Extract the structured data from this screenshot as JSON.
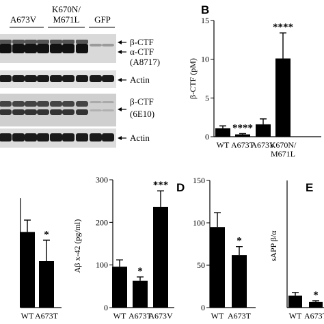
{
  "figure": {
    "panels": {
      "B": "B",
      "D": "D",
      "E": "E"
    },
    "western_blot": {
      "lane_groups": [
        "A673V",
        "K670N/\nM671L",
        "GFP"
      ],
      "lane_group_lines": [
        [
          "A673V"
        ],
        [
          "K670N/",
          "M671L"
        ],
        [
          "GFP"
        ]
      ],
      "blot1_labels": [
        "β-CTF",
        "α-CTF",
        "(A8717)"
      ],
      "blot2_label": "Actin",
      "blot3_labels": [
        "β-CTF",
        "(6E10)"
      ],
      "blot4_label": "Actin"
    }
  },
  "chart_data": [
    {
      "id": "panel-B",
      "type": "bar",
      "ylabel": "β-CTF (pM)",
      "ylim": [
        0,
        15
      ],
      "yticks": [
        0,
        5,
        10,
        15
      ],
      "categories": [
        "WT",
        "A673T",
        "A673V",
        "K670N/M671L"
      ],
      "category_label_lines": [
        [
          "WT"
        ],
        [
          "A673T"
        ],
        [
          "A673V"
        ],
        [
          "K670N/",
          "M671L"
        ]
      ],
      "values": [
        1.1,
        0.3,
        1.6,
        10.1
      ],
      "errors": [
        0.3,
        0.1,
        0.7,
        3.3
      ],
      "significance": [
        "",
        "****",
        "",
        "****"
      ]
    },
    {
      "id": "panel-C-right",
      "type": "bar",
      "ylabel": "",
      "ylim": [
        0,
        1.2
      ],
      "yticks": [],
      "categories": [
        "WT",
        "A673T"
      ],
      "category_label_lines": [
        [
          "WT"
        ],
        [
          "A673T"
        ]
      ],
      "values": [
        0.83,
        0.51
      ],
      "errors": [
        0.13,
        0.23
      ],
      "significance": [
        "",
        "*"
      ]
    },
    {
      "id": "panel-D-left",
      "type": "bar",
      "ylabel": "Aβ x-42 (pg/ml)",
      "ylim": [
        0,
        300
      ],
      "yticks": [
        0,
        100,
        200,
        300
      ],
      "categories": [
        "WT",
        "A673T",
        "A673V"
      ],
      "category_label_lines": [
        [
          "WT"
        ],
        [
          "A673T"
        ],
        [
          "A673V"
        ]
      ],
      "values": [
        96,
        63,
        236
      ],
      "errors": [
        16,
        9,
        38
      ],
      "significance": [
        "",
        "*",
        "***"
      ]
    },
    {
      "id": "panel-D-right",
      "type": "bar",
      "ylabel": "",
      "ylim": [
        0,
        150
      ],
      "yticks": [
        0,
        50,
        100,
        150
      ],
      "categories": [
        "WT",
        "A673T"
      ],
      "category_label_lines": [
        [
          "WT"
        ],
        [
          "A673T"
        ]
      ],
      "values": [
        95,
        62
      ],
      "errors": [
        17,
        10
      ],
      "significance": [
        "",
        "*"
      ]
    },
    {
      "id": "panel-E",
      "type": "bar",
      "ylabel": "sAPP β/α",
      "ylim": [
        0,
        8
      ],
      "yticks": [],
      "categories": [
        "WT",
        "A673T"
      ],
      "category_label_lines": [
        [
          "WT"
        ],
        [
          "A673T"
        ]
      ],
      "values": [
        0.75,
        0.35
      ],
      "errors": [
        0.2,
        0.08
      ],
      "significance": [
        "",
        "*"
      ]
    }
  ]
}
